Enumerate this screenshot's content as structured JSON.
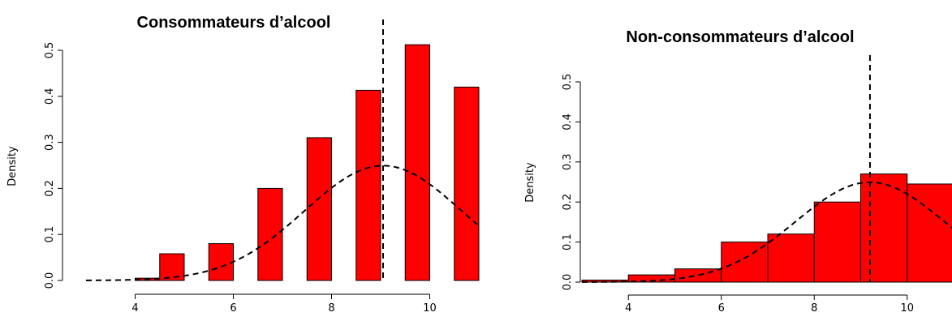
{
  "colors": {
    "bar_fill": "#ff0000",
    "bar_stroke": "#000000",
    "curve": "#000000",
    "axis": "#000000"
  },
  "chart_data": [
    {
      "type": "bar",
      "title": "Consommateurs d’alcool",
      "ylabel": "Density",
      "xlabel": "",
      "xlim": [
        3,
        11
      ],
      "ylim": [
        0,
        0.5
      ],
      "xticks": [
        "4",
        "6",
        "8",
        "10"
      ],
      "xtick_values": [
        4,
        6,
        8,
        10
      ],
      "yticks": [
        "0.0",
        "0.1",
        "0.2",
        "0.3",
        "0.4",
        "0.5"
      ],
      "ytick_values": [
        0,
        0.1,
        0.2,
        0.3,
        0.4,
        0.5
      ],
      "bars": [
        {
          "x0": 4.0,
          "x1": 4.5,
          "density": 0.005
        },
        {
          "x0": 4.5,
          "x1": 5.0,
          "density": 0.058
        },
        {
          "x0": 5.5,
          "x1": 6.0,
          "density": 0.08
        },
        {
          "x0": 6.5,
          "x1": 7.0,
          "density": 0.2
        },
        {
          "x0": 7.5,
          "x1": 8.0,
          "density": 0.31
        },
        {
          "x0": 8.5,
          "x1": 9.0,
          "density": 0.413
        },
        {
          "x0": 9.5,
          "x1": 10.0,
          "density": 0.512
        },
        {
          "x0": 10.5,
          "x1": 11.0,
          "density": 0.42
        }
      ],
      "normal_curve": {
        "mean": 9.05,
        "sd": 1.6,
        "x_from": 3.0,
        "x_to": 11.0
      },
      "mean_line": 9.05
    },
    {
      "type": "bar",
      "title": "Non-consommateurs d’alcool",
      "ylabel": "Density",
      "xlabel": "",
      "xlim": [
        3,
        11
      ],
      "ylim": [
        0,
        0.5
      ],
      "xticks": [
        "4",
        "6",
        "8",
        "10"
      ],
      "xtick_values": [
        4,
        6,
        8,
        10
      ],
      "yticks": [
        "0.0",
        "0.1",
        "0.2",
        "0.3",
        "0.4",
        "0.5"
      ],
      "ytick_values": [
        0,
        0.1,
        0.2,
        0.3,
        0.4,
        0.5
      ],
      "bars": [
        {
          "x0": 3.0,
          "x1": 4.0,
          "density": 0.005
        },
        {
          "x0": 4.0,
          "x1": 5.0,
          "density": 0.018
        },
        {
          "x0": 5.0,
          "x1": 6.0,
          "density": 0.033
        },
        {
          "x0": 6.0,
          "x1": 7.0,
          "density": 0.1
        },
        {
          "x0": 7.0,
          "x1": 8.0,
          "density": 0.12
        },
        {
          "x0": 8.0,
          "x1": 9.0,
          "density": 0.2
        },
        {
          "x0": 9.0,
          "x1": 10.0,
          "density": 0.27
        },
        {
          "x0": 10.0,
          "x1": 11.0,
          "density": 0.245
        }
      ],
      "normal_curve": {
        "mean": 9.2,
        "sd": 1.6,
        "x_from": 3.0,
        "x_to": 11.0
      },
      "mean_line": 9.2
    }
  ]
}
